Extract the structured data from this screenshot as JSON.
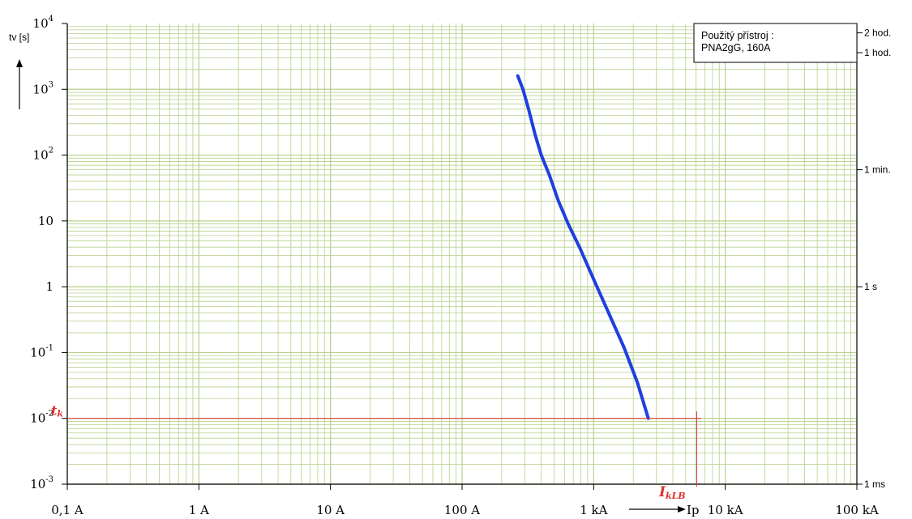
{
  "chart_data": {
    "type": "line",
    "x_scale": "log",
    "y_scale": "log",
    "xlim": [
      0.1,
      100000
    ],
    "ylim": [
      0.001,
      10000
    ],
    "grid": true,
    "x_ticks": [
      {
        "value": 0.1,
        "label": "0,1 A"
      },
      {
        "value": 1,
        "label": "1 A"
      },
      {
        "value": 10,
        "label": "10 A"
      },
      {
        "value": 100,
        "label": "100 A"
      },
      {
        "value": 1000,
        "label": "1 kA"
      },
      {
        "value": 10000,
        "label": "10 kA"
      },
      {
        "value": 100000,
        "label": "100 kA"
      }
    ],
    "y_ticks": [
      {
        "value": 10000,
        "base": "10",
        "exp": "4"
      },
      {
        "value": 1000,
        "base": "10",
        "exp": "3"
      },
      {
        "value": 100,
        "base": "10",
        "exp": "2"
      },
      {
        "value": 10,
        "base": "10",
        "exp": ""
      },
      {
        "value": 1,
        "base": "1",
        "exp": ""
      },
      {
        "value": 0.1,
        "base": "10",
        "exp": "-1"
      },
      {
        "value": 0.01,
        "base": "10",
        "exp": "-2"
      },
      {
        "value": 0.001,
        "base": "10",
        "exp": "-3"
      }
    ],
    "right_ticks": [
      {
        "value": 7200,
        "label": "2 hod."
      },
      {
        "value": 3600,
        "label": "1 hod."
      },
      {
        "value": 60,
        "label": "1 min."
      },
      {
        "value": 1,
        "label": "1 s"
      },
      {
        "value": 0.001,
        "label": "1 ms"
      }
    ],
    "ylabel": "tv [s]",
    "xlabel": "Ip",
    "series": [
      {
        "color": "#1f3fe0",
        "x": [
          265,
          290,
          320,
          360,
          400,
          460,
          540,
          640,
          780,
          1000,
          1300,
          1700,
          2150,
          2600
        ],
        "y": [
          1600,
          1000,
          500,
          200,
          100,
          50,
          20,
          9,
          4,
          1.3,
          0.4,
          0.12,
          0.035,
          0.01
        ]
      }
    ],
    "annotations": {
      "tk_label": "t",
      "tk_sub": "k",
      "tk_value": 0.01,
      "ikl_label": "I",
      "ikl_sub": "kLB",
      "ikl_value": 7500,
      "line_color": "#e03030"
    },
    "legend_box": {
      "line1": "Použitý přístroj :",
      "line2": "PNA2gG, 160A"
    },
    "grid_color": "#b7d08a"
  }
}
